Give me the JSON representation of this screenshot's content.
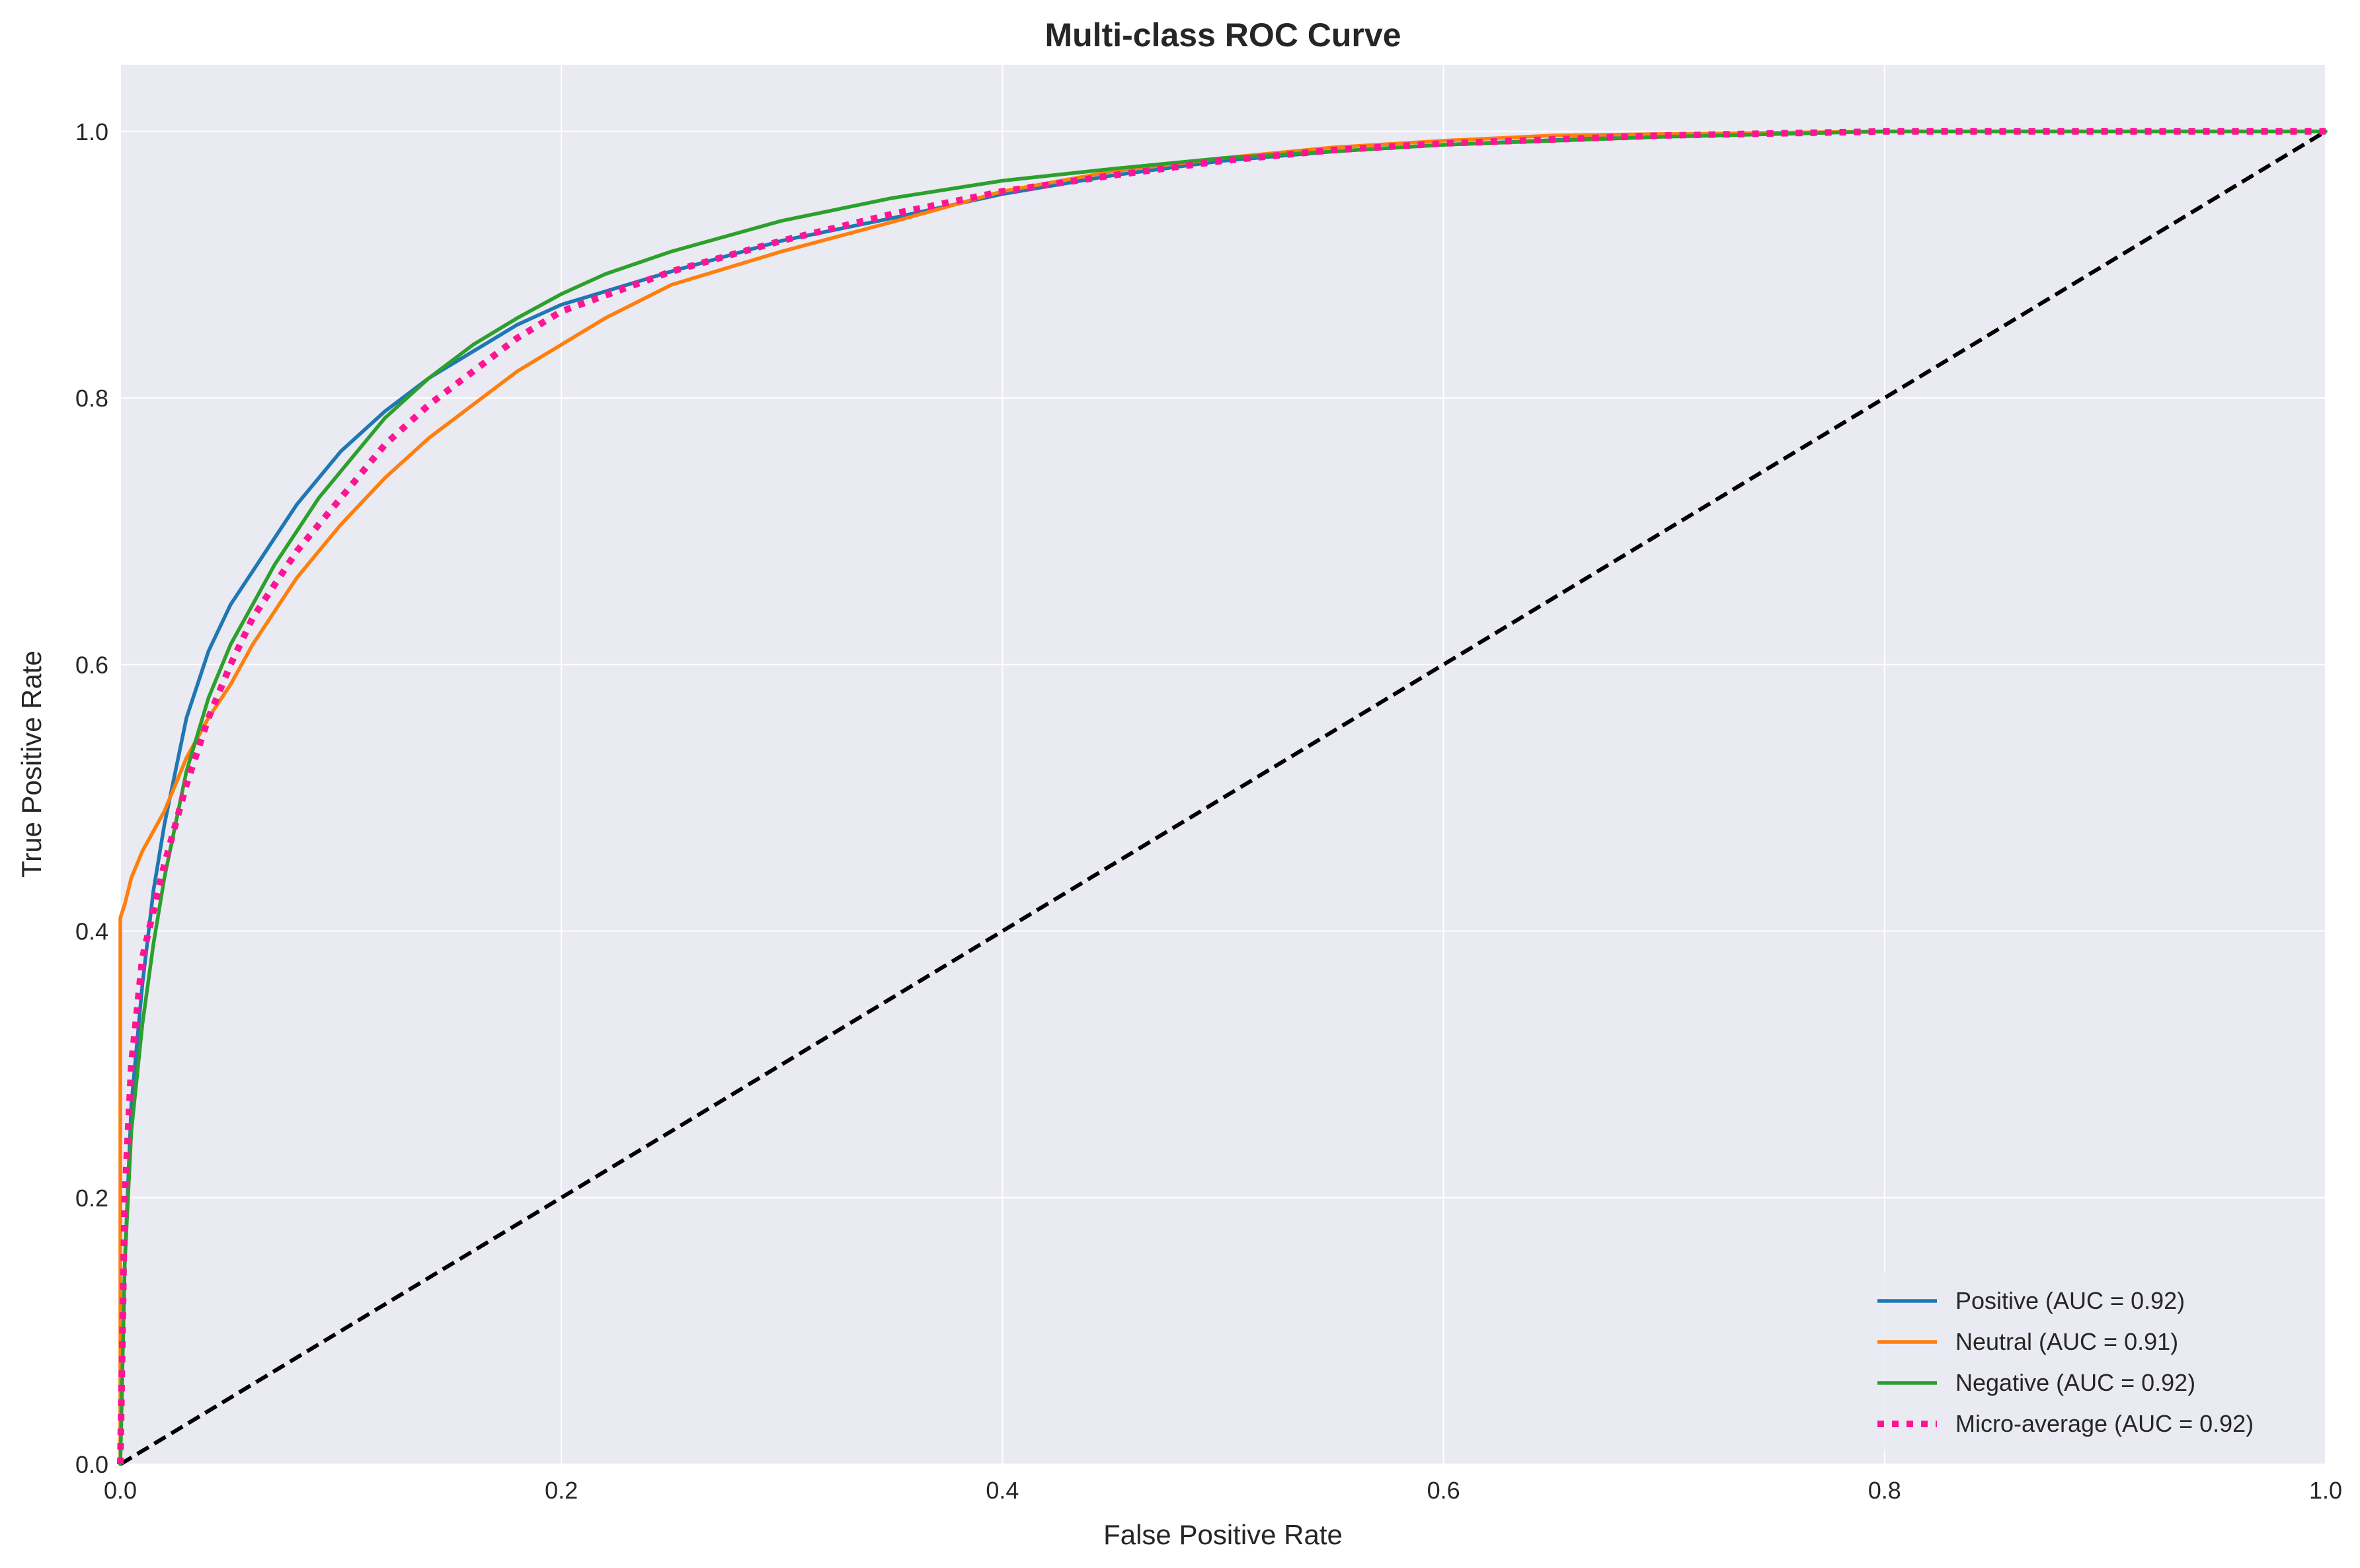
{
  "chart_data": {
    "type": "line",
    "title": "Multi-class ROC Curve",
    "xlabel": "False Positive Rate",
    "ylabel": "True Positive Rate",
    "xlim": [
      0,
      1
    ],
    "ylim": [
      0,
      1.05
    ],
    "x_ticks": [
      "0.0",
      "0.2",
      "0.4",
      "0.6",
      "0.8",
      "1.0"
    ],
    "y_ticks": [
      "0.0",
      "0.2",
      "0.4",
      "0.6",
      "0.8",
      "1.0"
    ],
    "grid": true,
    "legend_position": "lower-right",
    "colors": {
      "plot_background": "#eaeaf2",
      "grid": "#ffffff",
      "positive": "#1f77b4",
      "neutral": "#ff7f0e",
      "negative": "#2ca02c",
      "micro_average": "#ff1493",
      "chance": "#000000"
    },
    "series": [
      {
        "name": "Positive (AUC = 0.92)",
        "key": "positive",
        "style": "solid",
        "points": [
          [
            0,
            0
          ],
          [
            0.002,
            0.15
          ],
          [
            0.005,
            0.27
          ],
          [
            0.01,
            0.36
          ],
          [
            0.015,
            0.43
          ],
          [
            0.02,
            0.48
          ],
          [
            0.025,
            0.52
          ],
          [
            0.03,
            0.56
          ],
          [
            0.04,
            0.61
          ],
          [
            0.05,
            0.645
          ],
          [
            0.06,
            0.67
          ],
          [
            0.07,
            0.695
          ],
          [
            0.08,
            0.72
          ],
          [
            0.09,
            0.74
          ],
          [
            0.1,
            0.76
          ],
          [
            0.12,
            0.79
          ],
          [
            0.14,
            0.815
          ],
          [
            0.16,
            0.835
          ],
          [
            0.18,
            0.855
          ],
          [
            0.2,
            0.87
          ],
          [
            0.25,
            0.895
          ],
          [
            0.3,
            0.918
          ],
          [
            0.35,
            0.935
          ],
          [
            0.4,
            0.953
          ],
          [
            0.45,
            0.967
          ],
          [
            0.5,
            0.978
          ],
          [
            0.55,
            0.985
          ],
          [
            0.6,
            0.99
          ],
          [
            0.7,
            0.997
          ],
          [
            0.8,
            1.0
          ],
          [
            0.9,
            1.0
          ],
          [
            1.0,
            1.0
          ]
        ]
      },
      {
        "name": "Neutral (AUC = 0.91)",
        "key": "neutral",
        "style": "solid",
        "points": [
          [
            0,
            0
          ],
          [
            0,
            0.41
          ],
          [
            0.002,
            0.42
          ],
          [
            0.005,
            0.44
          ],
          [
            0.01,
            0.46
          ],
          [
            0.02,
            0.49
          ],
          [
            0.03,
            0.53
          ],
          [
            0.04,
            0.56
          ],
          [
            0.05,
            0.585
          ],
          [
            0.06,
            0.615
          ],
          [
            0.07,
            0.64
          ],
          [
            0.08,
            0.665
          ],
          [
            0.09,
            0.685
          ],
          [
            0.1,
            0.705
          ],
          [
            0.12,
            0.74
          ],
          [
            0.14,
            0.77
          ],
          [
            0.16,
            0.795
          ],
          [
            0.18,
            0.82
          ],
          [
            0.2,
            0.84
          ],
          [
            0.22,
            0.86
          ],
          [
            0.25,
            0.885
          ],
          [
            0.3,
            0.91
          ],
          [
            0.35,
            0.932
          ],
          [
            0.4,
            0.955
          ],
          [
            0.45,
            0.97
          ],
          [
            0.5,
            0.98
          ],
          [
            0.55,
            0.988
          ],
          [
            0.6,
            0.993
          ],
          [
            0.65,
            0.997
          ],
          [
            0.7,
            0.998
          ],
          [
            0.8,
            1.0
          ],
          [
            0.9,
            1.0
          ],
          [
            1.0,
            1.0
          ]
        ]
      },
      {
        "name": "Negative (AUC = 0.92)",
        "key": "negative",
        "style": "solid",
        "points": [
          [
            0,
            0
          ],
          [
            0.002,
            0.15
          ],
          [
            0.005,
            0.25
          ],
          [
            0.01,
            0.33
          ],
          [
            0.015,
            0.39
          ],
          [
            0.02,
            0.44
          ],
          [
            0.025,
            0.48
          ],
          [
            0.03,
            0.52
          ],
          [
            0.04,
            0.575
          ],
          [
            0.05,
            0.615
          ],
          [
            0.06,
            0.645
          ],
          [
            0.07,
            0.675
          ],
          [
            0.08,
            0.7
          ],
          [
            0.09,
            0.725
          ],
          [
            0.1,
            0.745
          ],
          [
            0.12,
            0.785
          ],
          [
            0.14,
            0.815
          ],
          [
            0.16,
            0.84
          ],
          [
            0.18,
            0.86
          ],
          [
            0.2,
            0.878
          ],
          [
            0.22,
            0.893
          ],
          [
            0.25,
            0.91
          ],
          [
            0.3,
            0.933
          ],
          [
            0.35,
            0.95
          ],
          [
            0.4,
            0.963
          ],
          [
            0.45,
            0.972
          ],
          [
            0.5,
            0.98
          ],
          [
            0.55,
            0.985
          ],
          [
            0.6,
            0.99
          ],
          [
            0.7,
            0.996
          ],
          [
            0.8,
            1.0
          ],
          [
            0.9,
            1.0
          ],
          [
            1.0,
            1.0
          ]
        ]
      },
      {
        "name": "Micro-average (AUC = 0.92)",
        "key": "micro_average",
        "style": "dotted",
        "points": [
          [
            0,
            0
          ],
          [
            0.002,
            0.2
          ],
          [
            0.005,
            0.3
          ],
          [
            0.01,
            0.38
          ],
          [
            0.02,
            0.45
          ],
          [
            0.03,
            0.51
          ],
          [
            0.04,
            0.56
          ],
          [
            0.05,
            0.6
          ],
          [
            0.06,
            0.635
          ],
          [
            0.07,
            0.66
          ],
          [
            0.08,
            0.685
          ],
          [
            0.09,
            0.705
          ],
          [
            0.1,
            0.725
          ],
          [
            0.12,
            0.765
          ],
          [
            0.14,
            0.795
          ],
          [
            0.16,
            0.82
          ],
          [
            0.18,
            0.845
          ],
          [
            0.2,
            0.865
          ],
          [
            0.25,
            0.895
          ],
          [
            0.3,
            0.918
          ],
          [
            0.35,
            0.938
          ],
          [
            0.4,
            0.955
          ],
          [
            0.45,
            0.967
          ],
          [
            0.5,
            0.978
          ],
          [
            0.55,
            0.986
          ],
          [
            0.6,
            0.991
          ],
          [
            0.7,
            0.997
          ],
          [
            0.8,
            1.0
          ],
          [
            0.9,
            1.0
          ],
          [
            1.0,
            1.0
          ]
        ]
      },
      {
        "name": "",
        "key": "chance",
        "style": "dashed",
        "points": [
          [
            0,
            0
          ],
          [
            1,
            1
          ]
        ]
      }
    ]
  }
}
